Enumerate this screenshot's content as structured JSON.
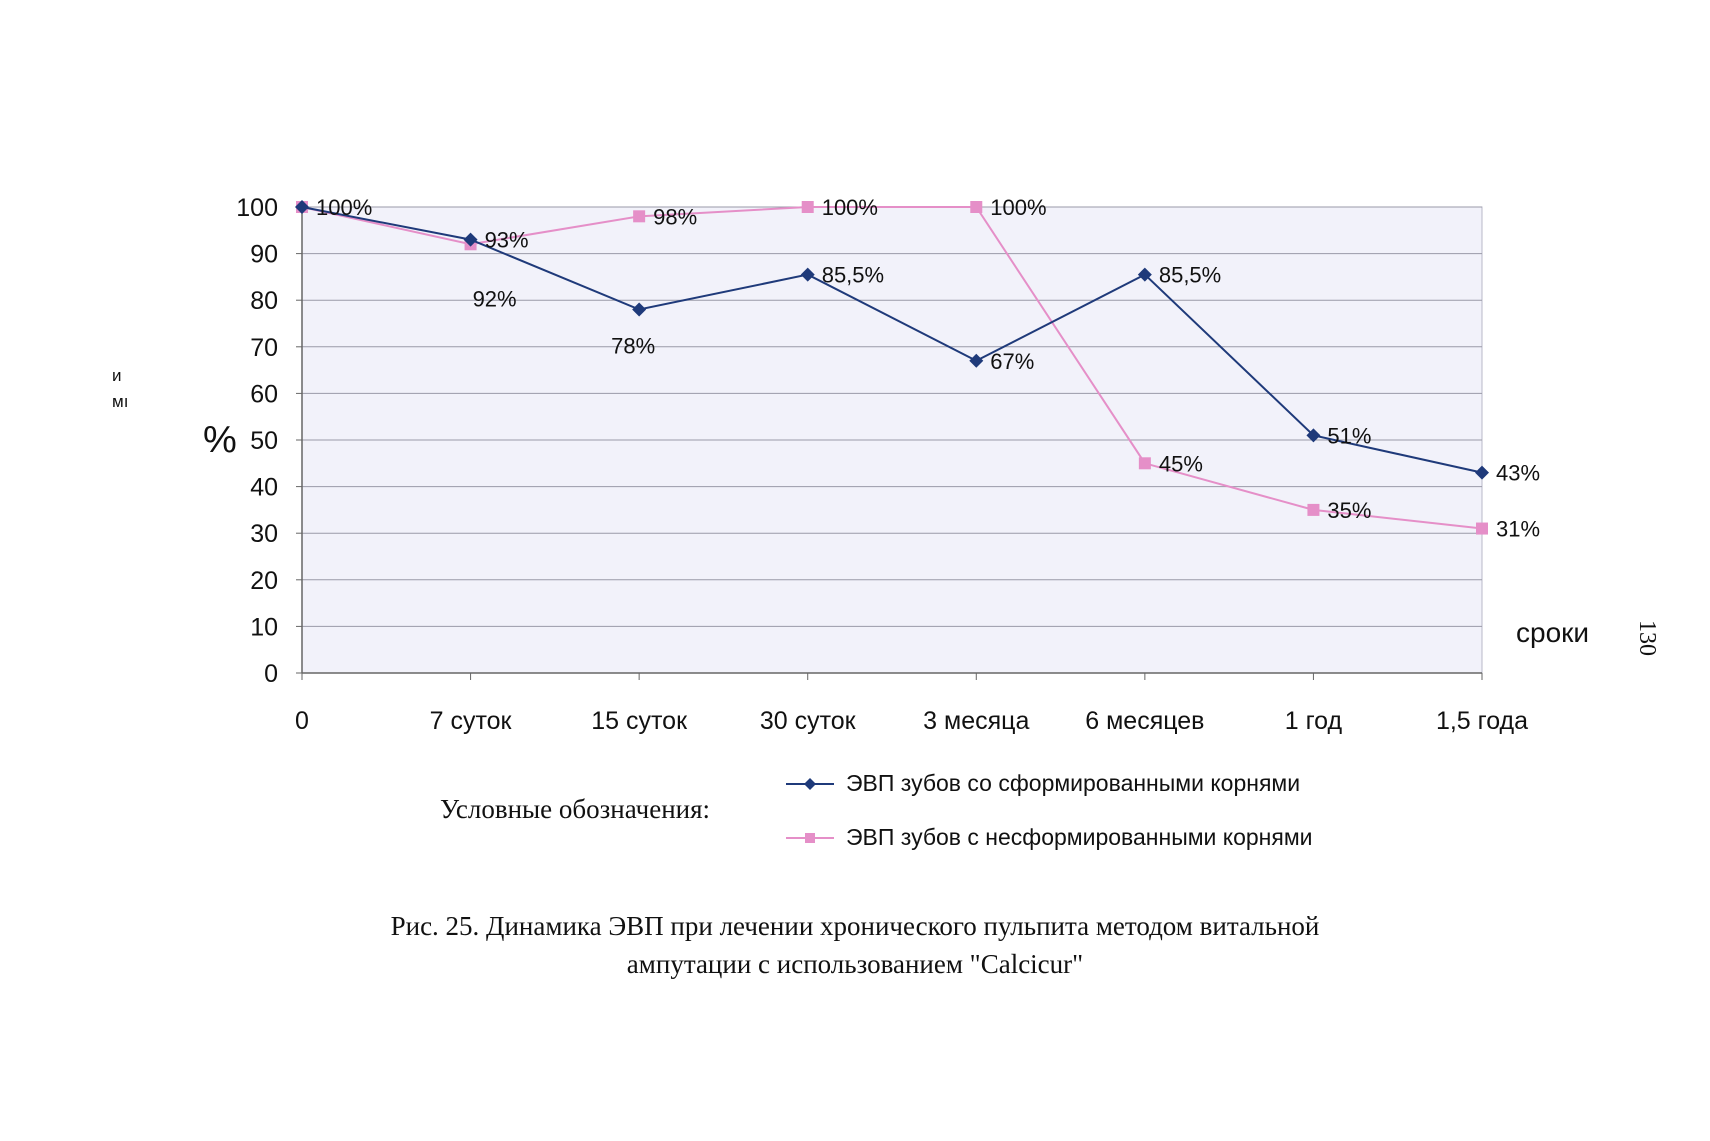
{
  "chart_data": {
    "type": "line",
    "categories": [
      "0",
      "7 суток",
      "15 суток",
      "30 суток",
      "3 месяца",
      "6 месяцев",
      "1 год",
      "1,5 года"
    ],
    "series": [
      {
        "name": "ЭВП зубов со сформированными корнями",
        "values": [
          100,
          93,
          78,
          85.5,
          67,
          85.5,
          51,
          43
        ],
        "labels": [
          "100%",
          "93%",
          "78%",
          "85,5%",
          "67%",
          "85,5%",
          "51%",
          "43%"
        ],
        "color": "#1f3a7a",
        "marker": "diamond"
      },
      {
        "name": "ЭВП зубов с несформированными корнями",
        "values": [
          100,
          92,
          98,
          100,
          100,
          45,
          35,
          31
        ],
        "labels": [
          "",
          "92%",
          "98%",
          "100%",
          "100%",
          "45%",
          "35%",
          "31%"
        ],
        "color": "#e58fc8",
        "marker": "square"
      }
    ],
    "yticks": [
      "0",
      "10",
      "20",
      "30",
      "40",
      "50",
      "60",
      "70",
      "80",
      "90",
      "100"
    ],
    "ylim": [
      0,
      100
    ],
    "ylabel": "%",
    "xlabel": "сроки",
    "grid": true,
    "legend_title": "Условные обозначения:",
    "legend_position": "bottom-center",
    "caption_line1": "Рис. 25.  Динамика ЭВП при лечении хронического пульпита методом витальной",
    "caption_line2": "ампутации с использованием  \"Calcicur\""
  },
  "page_number": "130",
  "margin_fragments": [
    "и",
    "мı"
  ]
}
